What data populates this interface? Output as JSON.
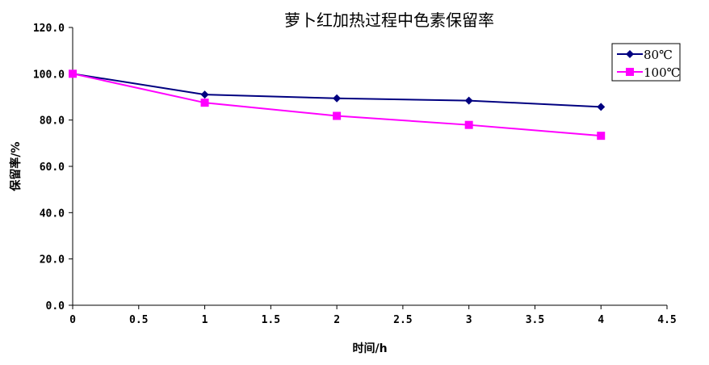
{
  "chart_data": {
    "type": "line",
    "title": "萝卜红加热过程中色素保留率",
    "xlabel": "时间/h",
    "ylabel": "保留率/%",
    "xlim": [
      0,
      4.5
    ],
    "ylim": [
      0,
      120
    ],
    "x_ticks": [
      "0",
      "0.5",
      "1",
      "1.5",
      "2",
      "2.5",
      "3",
      "3.5",
      "4",
      "4.5"
    ],
    "y_ticks": [
      "0.0",
      "20.0",
      "40.0",
      "60.0",
      "80.0",
      "100.0",
      "120.0"
    ],
    "grid": false,
    "legend_position": "top-right",
    "x": [
      0,
      1,
      2,
      3,
      4
    ],
    "series": [
      {
        "name": "80℃",
        "color": "#000080",
        "marker": "diamond",
        "values": [
          100,
          91.0,
          89.4,
          88.4,
          85.7
        ]
      },
      {
        "name": "100℃",
        "color": "#ff00ff",
        "marker": "square",
        "values": [
          100,
          87.5,
          81.8,
          77.9,
          73.2
        ]
      }
    ]
  }
}
